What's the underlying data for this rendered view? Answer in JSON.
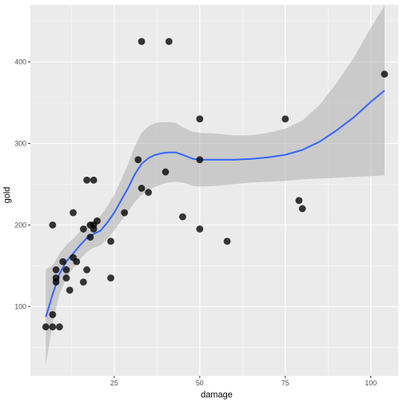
{
  "chart_data": {
    "type": "scatter",
    "xlabel": "damage",
    "ylabel": "gold",
    "xlim": [
      0.5,
      108
    ],
    "ylim": [
      15,
      470
    ],
    "x_ticks": [
      25,
      50,
      75,
      100
    ],
    "y_ticks": [
      100,
      200,
      300,
      400
    ],
    "x_tick_labels": [
      "25",
      "50",
      "75",
      "100"
    ],
    "y_tick_labels": [
      "100",
      "200",
      "300",
      "400"
    ],
    "grid": true,
    "points": [
      {
        "x": 5,
        "y": 75
      },
      {
        "x": 7,
        "y": 90
      },
      {
        "x": 7,
        "y": 200
      },
      {
        "x": 7,
        "y": 75
      },
      {
        "x": 8,
        "y": 145
      },
      {
        "x": 8,
        "y": 135
      },
      {
        "x": 8,
        "y": 130
      },
      {
        "x": 9,
        "y": 75
      },
      {
        "x": 10,
        "y": 155
      },
      {
        "x": 11,
        "y": 135
      },
      {
        "x": 11,
        "y": 145
      },
      {
        "x": 12,
        "y": 120
      },
      {
        "x": 13,
        "y": 215
      },
      {
        "x": 13,
        "y": 160
      },
      {
        "x": 14,
        "y": 155
      },
      {
        "x": 16,
        "y": 195
      },
      {
        "x": 16,
        "y": 130
      },
      {
        "x": 17,
        "y": 145
      },
      {
        "x": 17,
        "y": 255
      },
      {
        "x": 18,
        "y": 200
      },
      {
        "x": 18,
        "y": 185
      },
      {
        "x": 19,
        "y": 195
      },
      {
        "x": 19,
        "y": 200
      },
      {
        "x": 20,
        "y": 205
      },
      {
        "x": 19,
        "y": 255
      },
      {
        "x": 24,
        "y": 180
      },
      {
        "x": 24,
        "y": 135
      },
      {
        "x": 28,
        "y": 215
      },
      {
        "x": 32,
        "y": 280
      },
      {
        "x": 33,
        "y": 245
      },
      {
        "x": 33,
        "y": 425
      },
      {
        "x": 35,
        "y": 240
      },
      {
        "x": 40,
        "y": 265
      },
      {
        "x": 41,
        "y": 425
      },
      {
        "x": 45,
        "y": 210
      },
      {
        "x": 50,
        "y": 330
      },
      {
        "x": 50,
        "y": 280
      },
      {
        "x": 50,
        "y": 195
      },
      {
        "x": 58,
        "y": 180
      },
      {
        "x": 75,
        "y": 330
      },
      {
        "x": 79,
        "y": 230
      },
      {
        "x": 80,
        "y": 220
      },
      {
        "x": 104,
        "y": 385
      }
    ],
    "smooth_fit": [
      {
        "x": 5,
        "y": 87,
        "lo": 28,
        "hi": 146
      },
      {
        "x": 7,
        "y": 115,
        "lo": 80,
        "hi": 150
      },
      {
        "x": 9,
        "y": 140,
        "lo": 115,
        "hi": 165
      },
      {
        "x": 11,
        "y": 155,
        "lo": 135,
        "hi": 175
      },
      {
        "x": 13,
        "y": 165,
        "lo": 147,
        "hi": 183
      },
      {
        "x": 15,
        "y": 175,
        "lo": 158,
        "hi": 192
      },
      {
        "x": 17,
        "y": 184,
        "lo": 167,
        "hi": 201
      },
      {
        "x": 19,
        "y": 189,
        "lo": 172,
        "hi": 206
      },
      {
        "x": 21,
        "y": 193,
        "lo": 175,
        "hi": 211
      },
      {
        "x": 23,
        "y": 203,
        "lo": 183,
        "hi": 223
      },
      {
        "x": 25,
        "y": 215,
        "lo": 193,
        "hi": 237
      },
      {
        "x": 27,
        "y": 230,
        "lo": 205,
        "hi": 255
      },
      {
        "x": 29,
        "y": 245,
        "lo": 216,
        "hi": 274
      },
      {
        "x": 31,
        "y": 262,
        "lo": 228,
        "hi": 296
      },
      {
        "x": 33,
        "y": 275,
        "lo": 237,
        "hi": 313
      },
      {
        "x": 35,
        "y": 282,
        "lo": 243,
        "hi": 321
      },
      {
        "x": 37,
        "y": 286,
        "lo": 247,
        "hi": 325
      },
      {
        "x": 39,
        "y": 288,
        "lo": 250,
        "hi": 326
      },
      {
        "x": 41,
        "y": 289,
        "lo": 252,
        "hi": 326
      },
      {
        "x": 43,
        "y": 289,
        "lo": 253,
        "hi": 325
      },
      {
        "x": 45,
        "y": 286,
        "lo": 252,
        "hi": 320
      },
      {
        "x": 48,
        "y": 281,
        "lo": 248,
        "hi": 314
      },
      {
        "x": 50,
        "y": 280,
        "lo": 247,
        "hi": 313
      },
      {
        "x": 55,
        "y": 280,
        "lo": 248,
        "hi": 312
      },
      {
        "x": 60,
        "y": 280,
        "lo": 250,
        "hi": 310
      },
      {
        "x": 65,
        "y": 281,
        "lo": 252,
        "hi": 310
      },
      {
        "x": 70,
        "y": 283,
        "lo": 253,
        "hi": 313
      },
      {
        "x": 75,
        "y": 286,
        "lo": 254,
        "hi": 318
      },
      {
        "x": 80,
        "y": 292,
        "lo": 256,
        "hi": 328
      },
      {
        "x": 85,
        "y": 302,
        "lo": 257,
        "hi": 347
      },
      {
        "x": 90,
        "y": 316,
        "lo": 258,
        "hi": 374
      },
      {
        "x": 95,
        "y": 332,
        "lo": 259,
        "hi": 405
      },
      {
        "x": 100,
        "y": 351,
        "lo": 260,
        "hi": 442
      },
      {
        "x": 104,
        "y": 365,
        "lo": 261,
        "hi": 469
      }
    ],
    "colors": {
      "panel_background": "#ebebeb",
      "grid_major": "#ffffff",
      "point": "#000000",
      "smooth_line": "#3366ff",
      "ribbon": "#999999"
    }
  }
}
